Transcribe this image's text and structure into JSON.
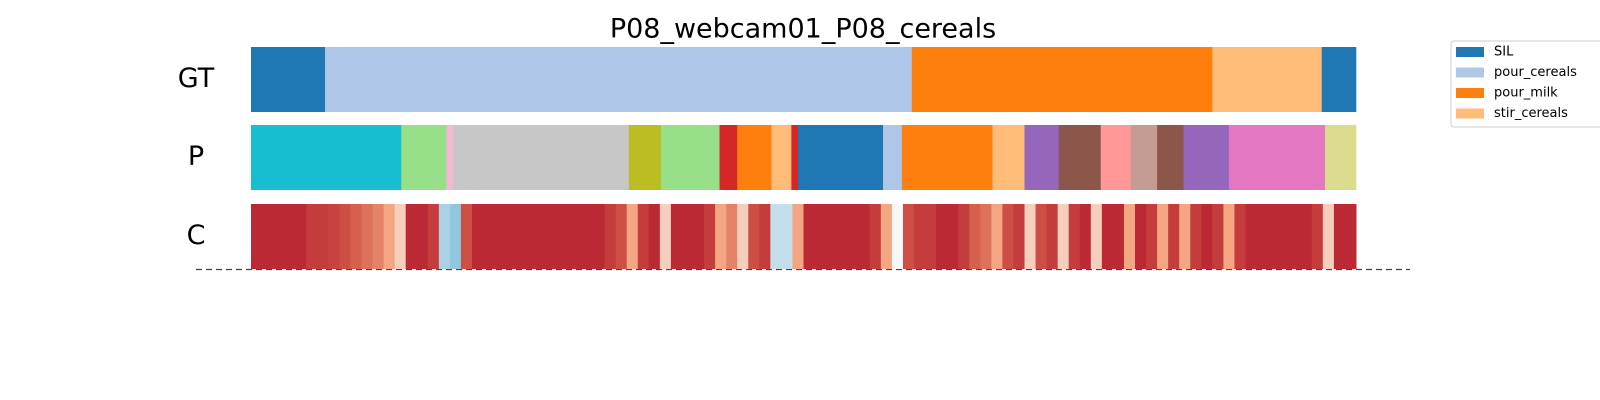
{
  "chart_data": {
    "type": "segmentation",
    "title": "P08_webcam01_P08_cereals",
    "xlim": [
      0,
      100
    ],
    "rows": [
      {
        "label": "GT",
        "segments": [
          {
            "start": 0,
            "end": 6.7,
            "color": "#1f77b4"
          },
          {
            "start": 6.7,
            "end": 59.8,
            "color": "#aec7e8"
          },
          {
            "start": 59.8,
            "end": 87.0,
            "color": "#ff7f0e"
          },
          {
            "start": 87.0,
            "end": 96.9,
            "color": "#ffbb78"
          },
          {
            "start": 96.9,
            "end": 100,
            "color": "#1f77b4"
          }
        ]
      },
      {
        "label": "P",
        "segments": [
          {
            "start": 0,
            "end": 13.6,
            "color": "#17becf"
          },
          {
            "start": 13.6,
            "end": 17.7,
            "color": "#98df8a"
          },
          {
            "start": 17.7,
            "end": 18.3,
            "color": "#f7b6d2"
          },
          {
            "start": 18.3,
            "end": 34.2,
            "color": "#c7c7c7"
          },
          {
            "start": 34.2,
            "end": 37.1,
            "color": "#bcbd22"
          },
          {
            "start": 37.1,
            "end": 42.4,
            "color": "#98df8a"
          },
          {
            "start": 42.4,
            "end": 44.0,
            "color": "#d62728"
          },
          {
            "start": 44.0,
            "end": 47.1,
            "color": "#ff7f0e"
          },
          {
            "start": 47.1,
            "end": 48.9,
            "color": "#ffbb78"
          },
          {
            "start": 48.9,
            "end": 49.5,
            "color": "#d62728"
          },
          {
            "start": 49.5,
            "end": 57.2,
            "color": "#1f77b4"
          },
          {
            "start": 57.2,
            "end": 58.9,
            "color": "#aec7e8"
          },
          {
            "start": 58.9,
            "end": 67.1,
            "color": "#ff7f0e"
          },
          {
            "start": 67.1,
            "end": 70.0,
            "color": "#ffbb78"
          },
          {
            "start": 70.0,
            "end": 73.1,
            "color": "#9467bd"
          },
          {
            "start": 73.1,
            "end": 76.9,
            "color": "#8c564b"
          },
          {
            "start": 76.9,
            "end": 79.6,
            "color": "#ff9896"
          },
          {
            "start": 79.6,
            "end": 82.0,
            "color": "#c49c94"
          },
          {
            "start": 82.0,
            "end": 84.4,
            "color": "#8c564b"
          },
          {
            "start": 84.4,
            "end": 88.5,
            "color": "#9467bd"
          },
          {
            "start": 88.5,
            "end": 97.2,
            "color": "#e377c2"
          },
          {
            "start": 97.2,
            "end": 100,
            "color": "#dbdb8d"
          }
        ]
      },
      {
        "label": "C",
        "clim": [
          0,
          1
        ],
        "colormap": [
          "#2166ac",
          "#92c5de",
          "#f7f7f7",
          "#f4a582",
          "#d6604d",
          "#b2182b"
        ],
        "values": [
          0.95,
          0.95,
          0.95,
          0.95,
          0.95,
          0.9,
          0.9,
          0.88,
          0.85,
          0.8,
          0.75,
          0.7,
          0.6,
          0.5,
          0.95,
          0.95,
          0.9,
          0.25,
          0.2,
          0.85,
          0.95,
          0.95,
          0.95,
          0.95,
          0.95,
          0.95,
          0.95,
          0.95,
          0.95,
          0.95,
          0.95,
          0.95,
          0.9,
          0.85,
          0.6,
          0.9,
          0.95,
          0.5,
          0.95,
          0.95,
          0.95,
          0.9,
          0.6,
          0.7,
          0.5,
          0.85,
          0.9,
          0.3,
          0.3,
          0.6,
          0.95,
          0.95,
          0.95,
          0.95,
          0.95,
          0.95,
          0.9,
          0.6,
          0.4,
          0.85,
          0.9,
          0.9,
          0.95,
          0.95,
          0.9,
          0.8,
          0.75,
          0.6,
          0.85,
          0.9,
          0.5,
          0.85,
          0.9,
          0.5,
          0.9,
          0.95,
          0.5,
          0.95,
          0.95,
          0.6,
          0.95,
          0.9,
          0.6,
          0.9,
          0.6,
          0.9,
          0.95,
          0.9,
          0.6,
          0.9,
          0.95,
          0.95,
          0.95,
          0.95,
          0.95,
          0.95,
          0.9,
          0.5,
          0.95,
          0.95
        ]
      }
    ],
    "legend": [
      {
        "name": "SIL",
        "color": "#1f77b4"
      },
      {
        "name": "pour_cereals",
        "color": "#aec7e8"
      },
      {
        "name": "pour_milk",
        "color": "#ff7f0e"
      },
      {
        "name": "stir_cereals",
        "color": "#ffbb78"
      }
    ]
  }
}
